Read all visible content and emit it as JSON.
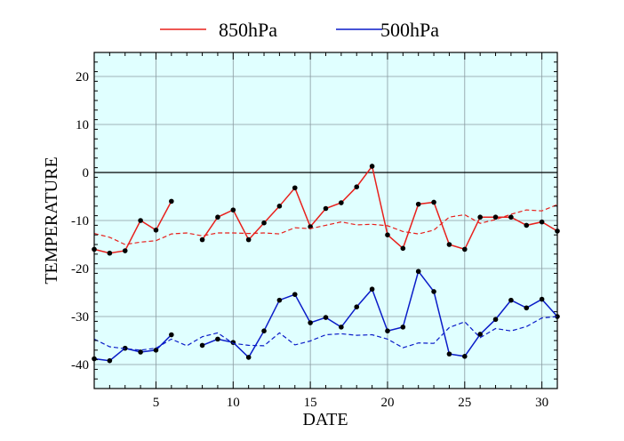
{
  "chart_data": {
    "type": "line",
    "xlabel": "DATE",
    "ylabel": "TEMPERATURE",
    "xlim": [
      1,
      31
    ],
    "ylim": [
      -45,
      25
    ],
    "xticks": [
      5,
      10,
      15,
      20,
      25,
      30
    ],
    "yticks": [
      -40,
      -30,
      -20,
      -10,
      0,
      10,
      20
    ],
    "grid": true,
    "legend_position": "top",
    "background": "#e0ffff",
    "zero_line": true,
    "series": [
      {
        "name": "850hPa",
        "color": "#e8201c",
        "style": "solid",
        "markers": true,
        "x": [
          1,
          2,
          3,
          4,
          5,
          6,
          7,
          8,
          9,
          10,
          11,
          12,
          13,
          14,
          15,
          16,
          17,
          18,
          19,
          20,
          21,
          22,
          23,
          24,
          25,
          26,
          27,
          28,
          29,
          30,
          31
        ],
        "values": [
          -16,
          -16.8,
          -16.3,
          -10,
          -12,
          -6,
          null,
          -14,
          -9.3,
          -7.8,
          -14,
          -10.5,
          -7,
          -3.2,
          -11.3,
          -7.5,
          -6.3,
          -3,
          1.3,
          -13,
          -15.8,
          -6.6,
          -6.2,
          -15,
          -16,
          -9.3,
          -9.3,
          -9.3,
          -11,
          -10.3,
          -12.2
        ]
      },
      {
        "name": "500hPa",
        "color": "#0a1cc8",
        "style": "solid",
        "markers": true,
        "x": [
          1,
          2,
          3,
          4,
          5,
          6,
          7,
          8,
          9,
          10,
          11,
          12,
          13,
          14,
          15,
          16,
          17,
          18,
          19,
          20,
          21,
          22,
          23,
          24,
          25,
          26,
          27,
          28,
          29,
          30,
          31
        ],
        "values": [
          -38.8,
          -39.2,
          -36.6,
          -37.4,
          -37,
          -33.8,
          null,
          -36,
          -34.7,
          -35.4,
          -38.5,
          -33,
          -26.6,
          -25.4,
          -31.3,
          -30.2,
          -32.2,
          -28,
          -24.3,
          -33,
          -32.2,
          -20.6,
          -24.8,
          -37.8,
          -38.3,
          -33.7,
          -30.6,
          -26.6,
          -28.2,
          -26.4,
          -30
        ]
      },
      {
        "name": "",
        "color": "#e8201c",
        "style": "dashed",
        "markers": false,
        "x": [
          1,
          2,
          3,
          4,
          5,
          6,
          7,
          8,
          9,
          10,
          11,
          12,
          13,
          14,
          15,
          16,
          17,
          18,
          19,
          20,
          21,
          22,
          23,
          24,
          25,
          26,
          27,
          28,
          29,
          30,
          31
        ],
        "values": [
          -12.7,
          -13.5,
          -15,
          -14.5,
          -14.2,
          -12.8,
          -12.6,
          -13.2,
          -12.6,
          -12.6,
          -12.7,
          -12.6,
          -12.8,
          -11.5,
          -11.7,
          -11,
          -10.3,
          -10.9,
          -10.8,
          -11.1,
          -12.3,
          -12.8,
          -12,
          -9.3,
          -8.8,
          -10.6,
          -9.8,
          -8.7,
          -7.8,
          -8,
          -6.7
        ]
      },
      {
        "name": "",
        "color": "#0a1cc8",
        "style": "dashed",
        "markers": false,
        "x": [
          1,
          2,
          3,
          4,
          5,
          6,
          7,
          8,
          9,
          10,
          11,
          12,
          13,
          14,
          15,
          16,
          17,
          18,
          19,
          20,
          21,
          22,
          23,
          24,
          25,
          26,
          27,
          28,
          29,
          30,
          31
        ],
        "values": [
          -34.7,
          -36.3,
          -36.7,
          -37,
          -36.6,
          -34.7,
          -36.1,
          -34.2,
          -33.4,
          -35.6,
          -36,
          -36.1,
          -33.4,
          -35.9,
          -35.1,
          -33.8,
          -33.6,
          -33.9,
          -33.8,
          -34.7,
          -36.5,
          -35.5,
          -35.6,
          -32.3,
          -31.1,
          -34.4,
          -32.5,
          -33,
          -32.1,
          -30.3,
          -30
        ]
      }
    ]
  }
}
